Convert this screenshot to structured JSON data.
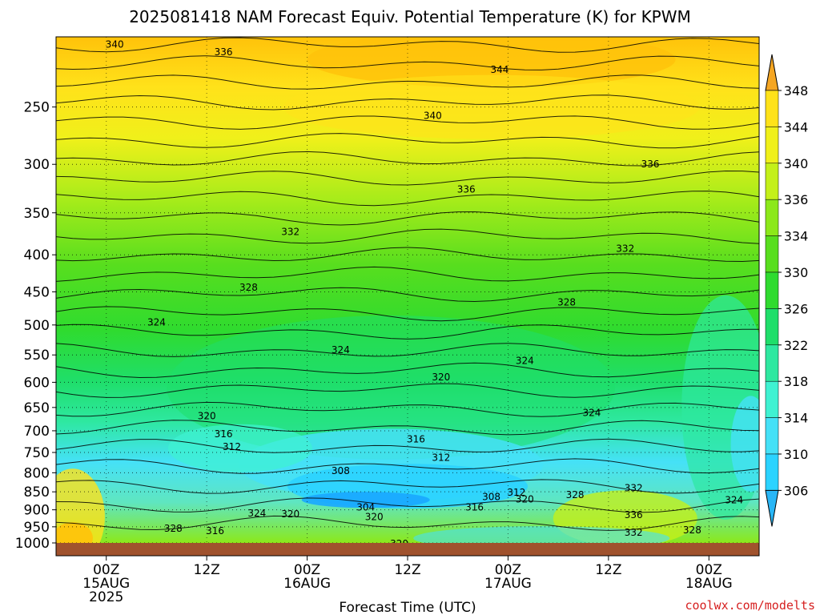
{
  "chart_data": {
    "type": "heatmap",
    "title": "2025081418 NAM Forecast Equiv. Potential Temperature (K) for KPWM",
    "xlabel": "Forecast Time (UTC)",
    "ylabel": "",
    "y_scale": "log",
    "y_reversed": true,
    "y_ticks": [
      250,
      300,
      350,
      400,
      450,
      500,
      550,
      600,
      650,
      700,
      750,
      800,
      850,
      900,
      950,
      1000
    ],
    "x_ticks": [
      {
        "hour": 6,
        "lines": [
          "00Z",
          "15AUG",
          "2025"
        ]
      },
      {
        "hour": 18,
        "lines": [
          "12Z"
        ]
      },
      {
        "hour": 30,
        "lines": [
          "00Z",
          "16AUG"
        ]
      },
      {
        "hour": 42,
        "lines": [
          "12Z"
        ]
      },
      {
        "hour": 54,
        "lines": [
          "00Z",
          "17AUG"
        ]
      },
      {
        "hour": 66,
        "lines": [
          "12Z"
        ]
      },
      {
        "hour": 78,
        "lines": [
          "00Z",
          "18AUG"
        ]
      }
    ],
    "colorbar": {
      "levels": [
        306,
        310,
        314,
        318,
        322,
        326,
        330,
        334,
        336,
        340,
        344,
        348
      ],
      "colors": [
        "#2bd3ff",
        "#45e1f7",
        "#3ff2d2",
        "#2ee8a0",
        "#1fde6a",
        "#2fdb2f",
        "#58de1e",
        "#8ce81a",
        "#c4f01a",
        "#f0f01a",
        "#ffe21a",
        "#ffc20a"
      ],
      "low_arrow_color": "#29b6f6",
      "high_arrow_color": "#f5a623"
    },
    "contour_labels": [
      {
        "value": 340,
        "hour": 7,
        "p": 205
      },
      {
        "value": 336,
        "hour": 20,
        "p": 210
      },
      {
        "value": 344,
        "hour": 53,
        "p": 222
      },
      {
        "value": 340,
        "hour": 45,
        "p": 257
      },
      {
        "value": 336,
        "hour": 49,
        "p": 325
      },
      {
        "value": 336,
        "hour": 71,
        "p": 300
      },
      {
        "value": 332,
        "hour": 28,
        "p": 372
      },
      {
        "value": 332,
        "hour": 68,
        "p": 392
      },
      {
        "value": 328,
        "hour": 23,
        "p": 444
      },
      {
        "value": 328,
        "hour": 61,
        "p": 465
      },
      {
        "value": 324,
        "hour": 12,
        "p": 496
      },
      {
        "value": 324,
        "hour": 34,
        "p": 541
      },
      {
        "value": 324,
        "hour": 56,
        "p": 560
      },
      {
        "value": 324,
        "hour": 64,
        "p": 661
      },
      {
        "value": 320,
        "hour": 46,
        "p": 590
      },
      {
        "value": 320,
        "hour": 18,
        "p": 668
      },
      {
        "value": 316,
        "hour": 20,
        "p": 707
      },
      {
        "value": 316,
        "hour": 43,
        "p": 719
      },
      {
        "value": 312,
        "hour": 21,
        "p": 737
      },
      {
        "value": 312,
        "hour": 46,
        "p": 762
      },
      {
        "value": 308,
        "hour": 34,
        "p": 795
      },
      {
        "value": 308,
        "hour": 52,
        "p": 864
      },
      {
        "value": 312,
        "hour": 55,
        "p": 852
      },
      {
        "value": 320,
        "hour": 56,
        "p": 870
      },
      {
        "value": 304,
        "hour": 37,
        "p": 893
      },
      {
        "value": 316,
        "hour": 50,
        "p": 893
      },
      {
        "value": 328,
        "hour": 62,
        "p": 858
      },
      {
        "value": 332,
        "hour": 69,
        "p": 840
      },
      {
        "value": 324,
        "hour": 81,
        "p": 873
      },
      {
        "value": 336,
        "hour": 69,
        "p": 915
      },
      {
        "value": 324,
        "hour": 24,
        "p": 910
      },
      {
        "value": 320,
        "hour": 28,
        "p": 912
      },
      {
        "value": 320,
        "hour": 38,
        "p": 920
      },
      {
        "value": 328,
        "hour": 14,
        "p": 955
      },
      {
        "value": 316,
        "hour": 19,
        "p": 962
      },
      {
        "value": 332,
        "hour": 69,
        "p": 967
      },
      {
        "value": 328,
        "hour": 76,
        "p": 960
      },
      {
        "value": 320,
        "hour": 41,
        "p": 1003
      }
    ],
    "x_range_hours": [
      0,
      84
    ],
    "y_range_hPa": [
      200,
      1000
    ]
  },
  "credit": "coolwx.com/modelts"
}
